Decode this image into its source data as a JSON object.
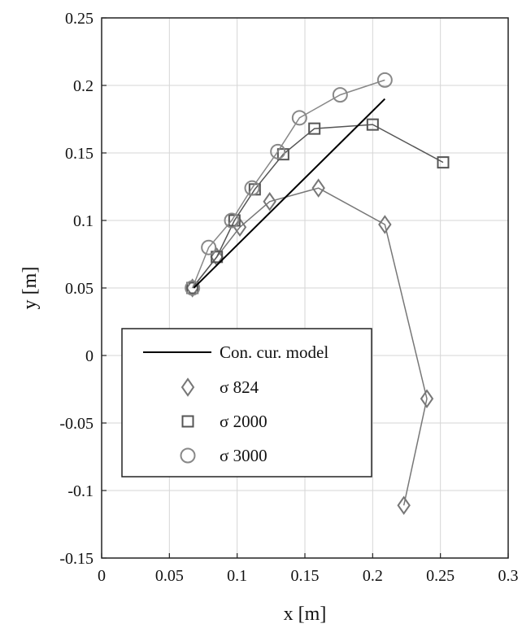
{
  "chart_data": {
    "type": "line",
    "xlabel": "x [m]",
    "ylabel": "y [m]",
    "xlim": [
      0,
      0.3
    ],
    "ylim": [
      -0.15,
      0.25
    ],
    "xticks": [
      0,
      0.05,
      0.1,
      0.15,
      0.2,
      0.25,
      0.3
    ],
    "xtick_labels": [
      "0",
      "0.05",
      "0.1",
      "0.15",
      "0.2",
      "0.25",
      "0.3"
    ],
    "yticks": [
      -0.15,
      -0.1,
      -0.05,
      0,
      0.05,
      0.1,
      0.15,
      0.2,
      0.25
    ],
    "ytick_labels": [
      "-0.15",
      "-0.1",
      "-0.05",
      "0",
      "0.05",
      "0.1",
      "0.15",
      "0.2",
      "0.25"
    ],
    "grid": true,
    "legend_position": "lower-left",
    "series": [
      {
        "name": "Con. cur. model",
        "style": "line",
        "color": "#000000",
        "x": [
          0.068,
          0.209
        ],
        "y": [
          0.05,
          0.19
        ]
      },
      {
        "name": "σ 824",
        "marker": "diamond",
        "color": "#777777",
        "x": [
          0.067,
          0.085,
          0.102,
          0.124,
          0.16,
          0.209,
          0.24,
          0.223
        ],
        "y": [
          0.05,
          0.073,
          0.095,
          0.114,
          0.124,
          0.097,
          -0.032,
          -0.111
        ]
      },
      {
        "name": "σ 2000",
        "marker": "square",
        "color": "#555555",
        "x": [
          0.067,
          0.085,
          0.098,
          0.113,
          0.134,
          0.157,
          0.2,
          0.252
        ],
        "y": [
          0.05,
          0.073,
          0.1,
          0.123,
          0.149,
          0.168,
          0.171,
          0.143
        ]
      },
      {
        "name": "σ 3000",
        "marker": "circle",
        "color": "#888888",
        "x": [
          0.067,
          0.079,
          0.096,
          0.111,
          0.13,
          0.146,
          0.176,
          0.209
        ],
        "y": [
          0.05,
          0.08,
          0.1,
          0.124,
          0.151,
          0.176,
          0.193,
          0.204
        ]
      }
    ]
  }
}
